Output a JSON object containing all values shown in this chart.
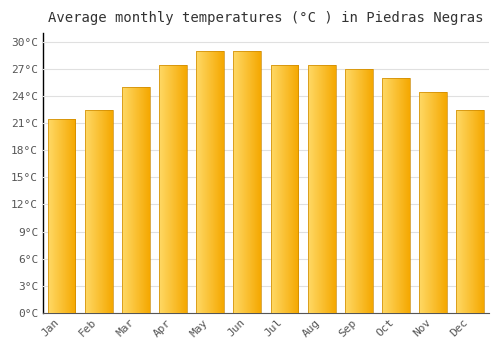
{
  "title": "Average monthly temperatures (°C ) in Piedras Negras",
  "months": [
    "Jan",
    "Feb",
    "Mar",
    "Apr",
    "May",
    "Jun",
    "Jul",
    "Aug",
    "Sep",
    "Oct",
    "Nov",
    "Dec"
  ],
  "values": [
    21.5,
    22.5,
    25.0,
    27.5,
    29.0,
    29.0,
    27.5,
    27.5,
    27.0,
    26.0,
    24.5,
    22.5
  ],
  "bar_color_left": "#FFD966",
  "bar_color_right": "#F5A800",
  "ylim": [
    0,
    31
  ],
  "yticks": [
    0,
    3,
    6,
    9,
    12,
    15,
    18,
    21,
    24,
    27,
    30
  ],
  "ytick_labels": [
    "0°C",
    "3°C",
    "6°C",
    "9°C",
    "12°C",
    "15°C",
    "18°C",
    "21°C",
    "24°C",
    "27°C",
    "30°C"
  ],
  "background_color": "#FFFFFF",
  "grid_color": "#E0E0E0",
  "title_fontsize": 10,
  "tick_fontsize": 8,
  "bar_width": 0.75
}
